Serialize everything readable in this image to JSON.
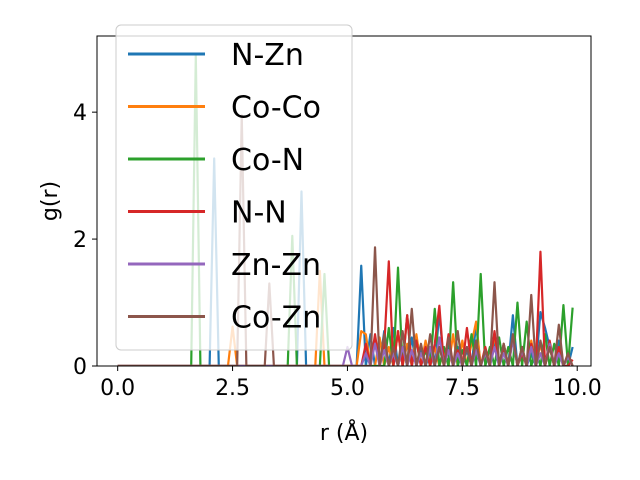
{
  "chart_data": {
    "type": "line",
    "xlabel": "r (Å)",
    "ylabel": "g(r)",
    "xlim": [
      -0.45,
      10.3
    ],
    "ylim": [
      0,
      5.2
    ],
    "xticks": [
      0.0,
      2.5,
      5.0,
      7.5,
      10.0
    ],
    "xtick_labels": [
      "0.0",
      "2.5",
      "5.0",
      "7.5",
      "10.0"
    ],
    "yticks": [
      0,
      2,
      4
    ],
    "ytick_labels": [
      "0",
      "2",
      "4"
    ],
    "grid": false,
    "legend_position": "top-left",
    "series": [
      {
        "name": "N-Zn",
        "color": "#1f77b4",
        "x": [
          0,
          0.1,
          0.2,
          0.3,
          0.4,
          0.5,
          0.6,
          0.7,
          0.8,
          0.9,
          1.0,
          1.1,
          1.2,
          1.3,
          1.4,
          1.5,
          1.6,
          1.7,
          1.8,
          1.9,
          2.0,
          2.1,
          2.2,
          2.3,
          2.4,
          2.5,
          2.6,
          2.7,
          2.8,
          2.9,
          3.0,
          3.1,
          3.2,
          3.3,
          3.4,
          3.5,
          3.6,
          3.7,
          3.8,
          3.9,
          4.0,
          4.1,
          4.2,
          4.3,
          4.4,
          4.5,
          4.6,
          4.7,
          4.8,
          4.9,
          5.0,
          5.1,
          5.2,
          5.3,
          5.4,
          5.5,
          5.6,
          5.7,
          5.8,
          5.9,
          6.0,
          6.1,
          6.2,
          6.3,
          6.4,
          6.5,
          6.6,
          6.7,
          6.8,
          6.9,
          7.0,
          7.1,
          7.2,
          7.3,
          7.4,
          7.5,
          7.6,
          7.7,
          7.8,
          7.9,
          8.0,
          8.1,
          8.2,
          8.3,
          8.4,
          8.5,
          8.6,
          8.7,
          8.8,
          8.9,
          9.0,
          9.1,
          9.2,
          9.3,
          9.4,
          9.5,
          9.6,
          9.7,
          9.8,
          9.9
        ],
        "y": [
          0,
          0,
          0,
          0,
          0,
          0,
          0,
          0,
          0,
          0,
          0,
          0,
          0,
          0,
          0,
          0,
          0,
          0,
          0,
          0,
          0,
          3.27,
          0,
          0,
          0,
          0,
          0,
          0,
          0,
          0,
          0,
          0,
          0,
          0,
          0,
          0,
          0,
          0,
          0,
          0,
          2.75,
          0,
          0,
          0,
          0,
          0,
          0,
          0,
          0,
          0,
          0,
          0,
          0,
          1.58,
          0,
          0.5,
          0,
          0,
          0.55,
          0,
          0.6,
          0,
          0.3,
          0,
          0.45,
          0,
          0.3,
          0,
          0.2,
          0,
          0.85,
          0,
          0.35,
          0,
          0.3,
          0,
          0.25,
          0,
          0.65,
          0,
          0.25,
          0,
          0.4,
          0,
          0.35,
          0,
          0.8,
          0,
          0.3,
          0,
          0.2,
          0,
          0.85,
          0.6,
          0.3,
          0,
          0.4,
          0,
          0,
          0.3
        ]
      },
      {
        "name": "Co-Co",
        "color": "#ff7f0e",
        "x": [
          0,
          0.1,
          0.2,
          0.3,
          0.4,
          0.5,
          0.6,
          0.7,
          0.8,
          0.9,
          1.0,
          1.1,
          1.2,
          1.3,
          1.4,
          1.5,
          1.6,
          1.7,
          1.8,
          1.9,
          2.0,
          2.1,
          2.2,
          2.3,
          2.4,
          2.5,
          2.6,
          2.7,
          2.8,
          2.9,
          3.0,
          3.1,
          3.2,
          3.3,
          3.4,
          3.5,
          3.6,
          3.7,
          3.8,
          3.9,
          4.0,
          4.1,
          4.2,
          4.3,
          4.4,
          4.5,
          4.6,
          4.7,
          4.8,
          4.9,
          5.0,
          5.1,
          5.2,
          5.3,
          5.4,
          5.5,
          5.6,
          5.7,
          5.8,
          5.9,
          6.0,
          6.1,
          6.2,
          6.3,
          6.4,
          6.5,
          6.6,
          6.7,
          6.8,
          6.9,
          7.0,
          7.1,
          7.2,
          7.3,
          7.4,
          7.5,
          7.6,
          7.7,
          7.8,
          7.9,
          8.0,
          8.1,
          8.2,
          8.3,
          8.4,
          8.5,
          8.6,
          8.7,
          8.8,
          8.9,
          9.0,
          9.1,
          9.2,
          9.3,
          9.4,
          9.5,
          9.6,
          9.7,
          9.8,
          9.9
        ],
        "y": [
          0,
          0,
          0,
          0,
          0,
          0,
          0,
          0,
          0,
          0,
          0,
          0,
          0,
          0,
          0,
          0,
          0,
          0,
          0,
          0,
          0,
          0,
          0,
          0,
          0,
          0.62,
          0,
          0,
          0,
          0,
          0,
          0,
          0,
          0,
          0,
          0,
          0,
          0,
          0,
          0,
          0,
          0,
          0,
          0,
          1.5,
          0,
          0,
          0,
          0,
          0,
          0,
          0,
          0,
          0.55,
          0.5,
          0,
          0,
          0.45,
          0,
          0.3,
          0,
          0.55,
          0,
          0.35,
          0,
          0.5,
          0,
          0.4,
          0,
          0.3,
          0,
          0.25,
          0,
          0.5,
          0,
          0.4,
          0,
          0.35,
          0.7,
          0,
          0.25,
          0,
          0.5,
          0,
          0.35,
          0,
          0.45,
          0,
          0.3,
          0,
          0.4,
          0,
          0.35,
          0,
          0.3,
          0,
          0.2,
          0,
          0.15,
          0
        ]
      },
      {
        "name": "Co-N",
        "color": "#2ca02c",
        "x": [
          0,
          0.1,
          0.2,
          0.3,
          0.4,
          0.5,
          0.6,
          0.7,
          0.8,
          0.9,
          1.0,
          1.1,
          1.2,
          1.3,
          1.4,
          1.5,
          1.6,
          1.7,
          1.8,
          1.9,
          2.0,
          2.1,
          2.2,
          2.3,
          2.4,
          2.5,
          2.6,
          2.7,
          2.8,
          2.9,
          3.0,
          3.1,
          3.2,
          3.3,
          3.4,
          3.5,
          3.6,
          3.7,
          3.8,
          3.9,
          4.0,
          4.1,
          4.2,
          4.3,
          4.4,
          4.5,
          4.6,
          4.7,
          4.8,
          4.9,
          5.0,
          5.1,
          5.2,
          5.3,
          5.4,
          5.5,
          5.6,
          5.7,
          5.8,
          5.9,
          6.0,
          6.1,
          6.2,
          6.3,
          6.4,
          6.5,
          6.6,
          6.7,
          6.8,
          6.9,
          7.0,
          7.1,
          7.2,
          7.3,
          7.4,
          7.5,
          7.6,
          7.7,
          7.8,
          7.9,
          8.0,
          8.1,
          8.2,
          8.3,
          8.4,
          8.5,
          8.6,
          8.7,
          8.8,
          8.9,
          9.0,
          9.1,
          9.2,
          9.3,
          9.4,
          9.5,
          9.6,
          9.7,
          9.8,
          9.9
        ],
        "y": [
          0,
          0,
          0,
          0,
          0,
          0,
          0,
          0,
          0,
          0,
          0,
          0,
          0,
          0,
          0,
          0,
          0,
          4.9,
          0,
          0,
          0,
          0,
          0,
          0,
          0,
          0,
          0,
          0,
          0,
          0,
          0,
          0,
          0,
          0,
          0,
          0,
          0,
          0,
          2.05,
          0,
          0,
          0,
          0,
          0,
          0,
          1.45,
          0,
          0,
          0,
          0,
          0,
          0,
          0,
          0,
          0,
          0,
          0,
          0,
          0,
          0.6,
          0,
          1.55,
          0,
          0.8,
          0,
          0.4,
          0,
          0.25,
          0,
          0.9,
          0,
          0.3,
          0,
          1.32,
          0,
          0.25,
          0,
          0.5,
          0,
          1.45,
          0,
          0.3,
          0,
          0.45,
          0,
          0.3,
          0,
          1.0,
          0,
          0.7,
          0,
          0.25,
          0,
          0.5,
          0,
          0.35,
          0,
          0.96,
          0,
          0.92
        ]
      },
      {
        "name": "N-N",
        "color": "#d62728",
        "x": [
          0,
          0.1,
          0.2,
          0.3,
          0.4,
          0.5,
          0.6,
          0.7,
          0.8,
          0.9,
          1.0,
          1.1,
          1.2,
          1.3,
          1.4,
          1.5,
          1.6,
          1.7,
          1.8,
          1.9,
          2.0,
          2.1,
          2.2,
          2.3,
          2.4,
          2.5,
          2.6,
          2.7,
          2.8,
          2.9,
          3.0,
          3.1,
          3.2,
          3.3,
          3.4,
          3.5,
          3.6,
          3.7,
          3.8,
          3.9,
          4.0,
          4.1,
          4.2,
          4.3,
          4.4,
          4.5,
          4.6,
          4.7,
          4.8,
          4.9,
          5.0,
          5.1,
          5.2,
          5.3,
          5.4,
          5.5,
          5.6,
          5.7,
          5.8,
          5.9,
          6.0,
          6.1,
          6.2,
          6.3,
          6.4,
          6.5,
          6.6,
          6.7,
          6.8,
          6.9,
          7.0,
          7.1,
          7.2,
          7.3,
          7.4,
          7.5,
          7.6,
          7.7,
          7.8,
          7.9,
          8.0,
          8.1,
          8.2,
          8.3,
          8.4,
          8.5,
          8.6,
          8.7,
          8.8,
          8.9,
          9.0,
          9.1,
          9.2,
          9.3,
          9.4,
          9.5,
          9.6,
          9.7,
          9.8,
          9.9
        ],
        "y": [
          0,
          0,
          0,
          0,
          0,
          0,
          0,
          0,
          0,
          0,
          0,
          0,
          0,
          0,
          0,
          0,
          0,
          0,
          0,
          0,
          0,
          0,
          0,
          0,
          0,
          0,
          0,
          0,
          0,
          0,
          0,
          0,
          0,
          0,
          0,
          0,
          0,
          0,
          0,
          0,
          0,
          0,
          0,
          0,
          0,
          0,
          0,
          0,
          0,
          0,
          0,
          0,
          0,
          0,
          0.35,
          0,
          0.5,
          0,
          0.3,
          1.65,
          0,
          0.55,
          0,
          0.8,
          0,
          0.4,
          0,
          0.3,
          0,
          0.35,
          0.95,
          0,
          0.5,
          0,
          0.25,
          0,
          0.6,
          0,
          0.4,
          0,
          0.3,
          0,
          0.55,
          0,
          0.3,
          0,
          0.45,
          0,
          0.2,
          0,
          0.35,
          0,
          1.8,
          0,
          0.4,
          0,
          0.3,
          0,
          0,
          0.1
        ]
      },
      {
        "name": "Zn-Zn",
        "color": "#9467bd",
        "x": [
          0,
          0.1,
          0.2,
          0.3,
          0.4,
          0.5,
          0.6,
          0.7,
          0.8,
          0.9,
          1.0,
          1.1,
          1.2,
          1.3,
          1.4,
          1.5,
          1.6,
          1.7,
          1.8,
          1.9,
          2.0,
          2.1,
          2.2,
          2.3,
          2.4,
          2.5,
          2.6,
          2.7,
          2.8,
          2.9,
          3.0,
          3.1,
          3.2,
          3.3,
          3.4,
          3.5,
          3.6,
          3.7,
          3.8,
          3.9,
          4.0,
          4.1,
          4.2,
          4.3,
          4.4,
          4.5,
          4.6,
          4.7,
          4.8,
          4.9,
          5.0,
          5.1,
          5.2,
          5.3,
          5.4,
          5.5,
          5.6,
          5.7,
          5.8,
          5.9,
          6.0,
          6.1,
          6.2,
          6.3,
          6.4,
          6.5,
          6.6,
          6.7,
          6.8,
          6.9,
          7.0,
          7.1,
          7.2,
          7.3,
          7.4,
          7.5,
          7.6,
          7.7,
          7.8,
          7.9,
          8.0,
          8.1,
          8.2,
          8.3,
          8.4,
          8.5,
          8.6,
          8.7,
          8.8,
          8.9,
          9.0,
          9.1,
          9.2,
          9.3,
          9.4,
          9.5,
          9.6,
          9.7,
          9.8,
          9.9
        ],
        "y": [
          0,
          0,
          0,
          0,
          0,
          0,
          0,
          0,
          0,
          0,
          0,
          0,
          0,
          0,
          0,
          0,
          0,
          0,
          0,
          0,
          0,
          0,
          0,
          0,
          0,
          0,
          0,
          0,
          0,
          0,
          0,
          0,
          0,
          0,
          0,
          0,
          0,
          0,
          0,
          0,
          0,
          0,
          0,
          0,
          0,
          0,
          0,
          0,
          0,
          0,
          0.3,
          0,
          0,
          0,
          0.2,
          0,
          0.35,
          0,
          0.25,
          0,
          0.2,
          0,
          0.3,
          0,
          0.25,
          0,
          0.2,
          0,
          0.3,
          0,
          0.45,
          0,
          0.25,
          0,
          0.2,
          0,
          0.3,
          0,
          0.25,
          0,
          0.2,
          0,
          0.3,
          0,
          0.2,
          0,
          0.4,
          0,
          0.25,
          0,
          0.3,
          0,
          0.2,
          0,
          0.35,
          0,
          0.2,
          0,
          0.15,
          0
        ]
      },
      {
        "name": "Co-Zn",
        "color": "#8c564b",
        "x": [
          0,
          0.1,
          0.2,
          0.3,
          0.4,
          0.5,
          0.6,
          0.7,
          0.8,
          0.9,
          1.0,
          1.1,
          1.2,
          1.3,
          1.4,
          1.5,
          1.6,
          1.7,
          1.8,
          1.9,
          2.0,
          2.1,
          2.2,
          2.3,
          2.4,
          2.5,
          2.6,
          2.7,
          2.8,
          2.9,
          3.0,
          3.1,
          3.2,
          3.3,
          3.4,
          3.5,
          3.6,
          3.7,
          3.8,
          3.9,
          4.0,
          4.1,
          4.2,
          4.3,
          4.4,
          4.5,
          4.6,
          4.7,
          4.8,
          4.9,
          5.0,
          5.1,
          5.2,
          5.3,
          5.4,
          5.5,
          5.6,
          5.7,
          5.8,
          5.9,
          6.0,
          6.1,
          6.2,
          6.3,
          6.4,
          6.5,
          6.6,
          6.7,
          6.8,
          6.9,
          7.0,
          7.1,
          7.2,
          7.3,
          7.4,
          7.5,
          7.6,
          7.7,
          7.8,
          7.9,
          8.0,
          8.1,
          8.2,
          8.3,
          8.4,
          8.5,
          8.6,
          8.7,
          8.8,
          8.9,
          9.0,
          9.1,
          9.2,
          9.3,
          9.4,
          9.5,
          9.6,
          9.7,
          9.8,
          9.9
        ],
        "y": [
          0,
          0,
          0,
          0,
          0,
          0,
          0,
          0,
          0,
          0,
          0,
          0,
          0,
          0,
          0,
          0,
          0,
          0,
          0,
          0,
          0,
          0,
          0,
          0,
          0,
          0,
          0,
          3.95,
          0,
          0,
          0,
          0,
          0,
          1.3,
          0,
          0,
          0,
          0,
          0,
          0,
          0,
          0,
          0,
          0,
          0,
          0,
          0,
          0,
          0,
          0,
          0,
          0,
          0,
          0,
          0,
          0,
          1.87,
          0,
          0.5,
          0,
          0.3,
          0,
          0.55,
          0,
          0.9,
          0,
          0.35,
          0,
          0.5,
          0,
          0.3,
          0,
          0.45,
          0,
          0.55,
          0,
          0.3,
          0,
          0.4,
          0,
          0.25,
          0,
          1.32,
          0,
          0.35,
          0,
          0.5,
          0,
          0.3,
          0,
          1.12,
          0,
          0.4,
          0,
          0.3,
          0,
          0.65,
          0,
          0.2,
          0
        ]
      }
    ]
  }
}
